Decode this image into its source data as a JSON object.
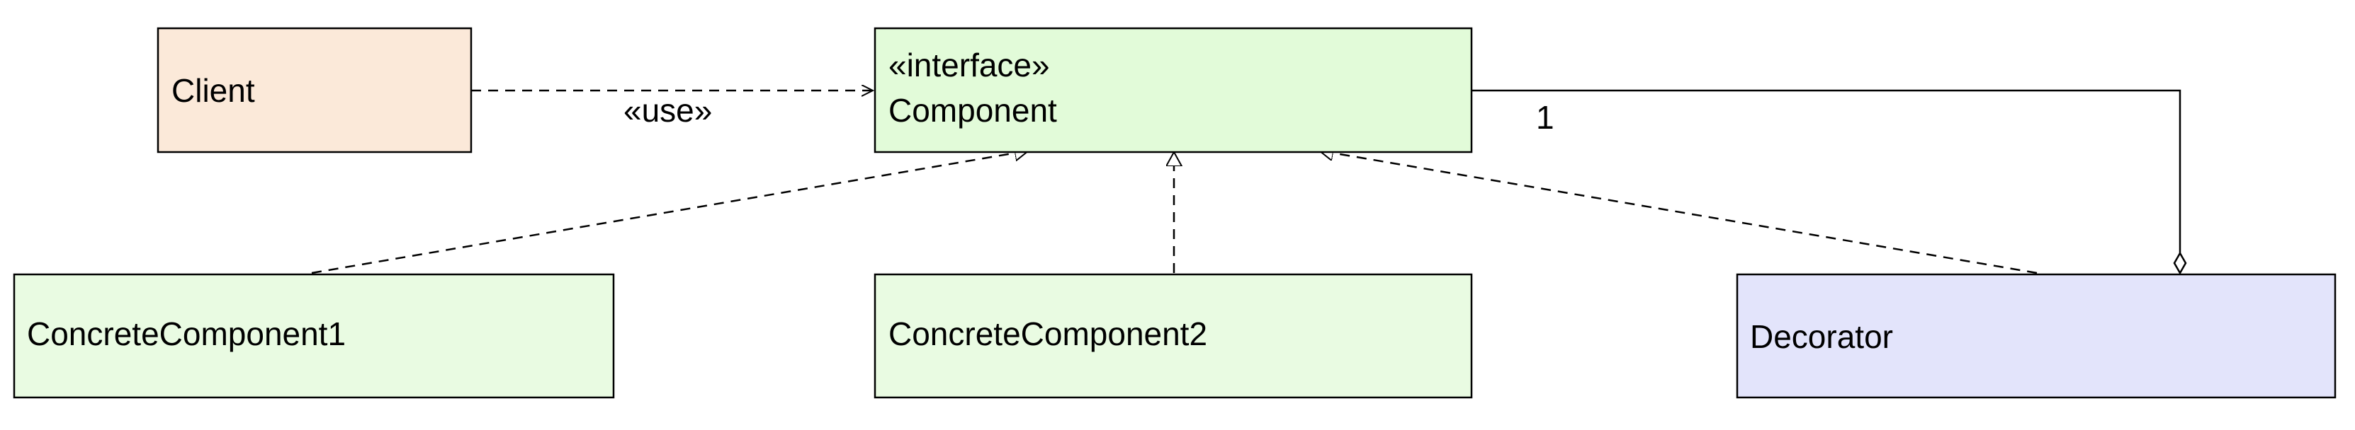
{
  "nodes": {
    "client": {
      "label": "Client",
      "fill": "#fbe9d9"
    },
    "component": {
      "stereotype": "«interface»",
      "label": "Component",
      "fill": "#e2fbd9"
    },
    "concrete1": {
      "label": "ConcreteComponent1",
      "fill": "#e9fbe2"
    },
    "concrete2": {
      "label": "ConcreteComponent2",
      "fill": "#e9fbe2"
    },
    "decorator": {
      "label": "Decorator",
      "fill": "#e3e4fb"
    }
  },
  "edges": {
    "use": {
      "label": "«use»"
    },
    "aggregation": {
      "multiplicity": "1"
    }
  },
  "colors": {
    "stroke": "#000000"
  }
}
